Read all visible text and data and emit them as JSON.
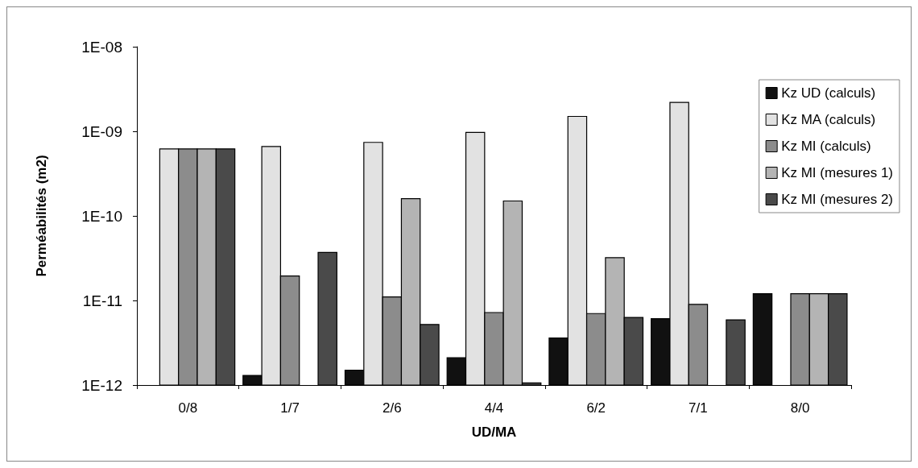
{
  "chart_data": {
    "type": "bar",
    "xlabel": "UD/MA",
    "ylabel": "Perméabilités (m2)",
    "categories": [
      "0/8",
      "1/7",
      "2/6",
      "4/4",
      "6/2",
      "7/1",
      "8/0"
    ],
    "series": [
      {
        "name": "Kz UD (calculs)",
        "color": "#111111",
        "values": [
          null,
          1.3e-12,
          1.5e-12,
          2.1e-12,
          3.6e-12,
          6.1e-12,
          1.2e-11
        ]
      },
      {
        "name": "Kz MA (calculs)",
        "color": "#e2e2e2",
        "values": [
          6.2e-10,
          6.6e-10,
          7.4e-10,
          9.7e-10,
          1.5e-09,
          2.2e-09,
          null
        ]
      },
      {
        "name": "Kz MI (calculs)",
        "color": "#8c8c8c",
        "values": [
          6.2e-10,
          1.95e-11,
          1.1e-11,
          7.2e-12,
          7e-12,
          9e-12,
          1.2e-11
        ]
      },
      {
        "name": "Kz MI (mesures 1)",
        "color": "#b4b4b4",
        "values": [
          6.2e-10,
          null,
          1.6e-10,
          1.5e-10,
          3.2e-11,
          null,
          1.2e-11
        ]
      },
      {
        "name": "Kz MI (mesures 2)",
        "color": "#4a4a4a",
        "values": [
          6.2e-10,
          3.7e-11,
          5.2e-12,
          1.06e-12,
          6.3e-12,
          5.9e-12,
          1.2e-11
        ]
      }
    ],
    "log": true,
    "ylim": [
      1e-12,
      1e-08
    ],
    "yticks": [
      {
        "value": 1e-12,
        "label": "1E-12"
      },
      {
        "value": 1e-11,
        "label": "1E-11"
      },
      {
        "value": 1e-10,
        "label": "1E-10"
      },
      {
        "value": 1e-09,
        "label": "1E-09"
      },
      {
        "value": 1e-08,
        "label": "1E-08"
      }
    ],
    "grid": false,
    "legend": "top right"
  }
}
